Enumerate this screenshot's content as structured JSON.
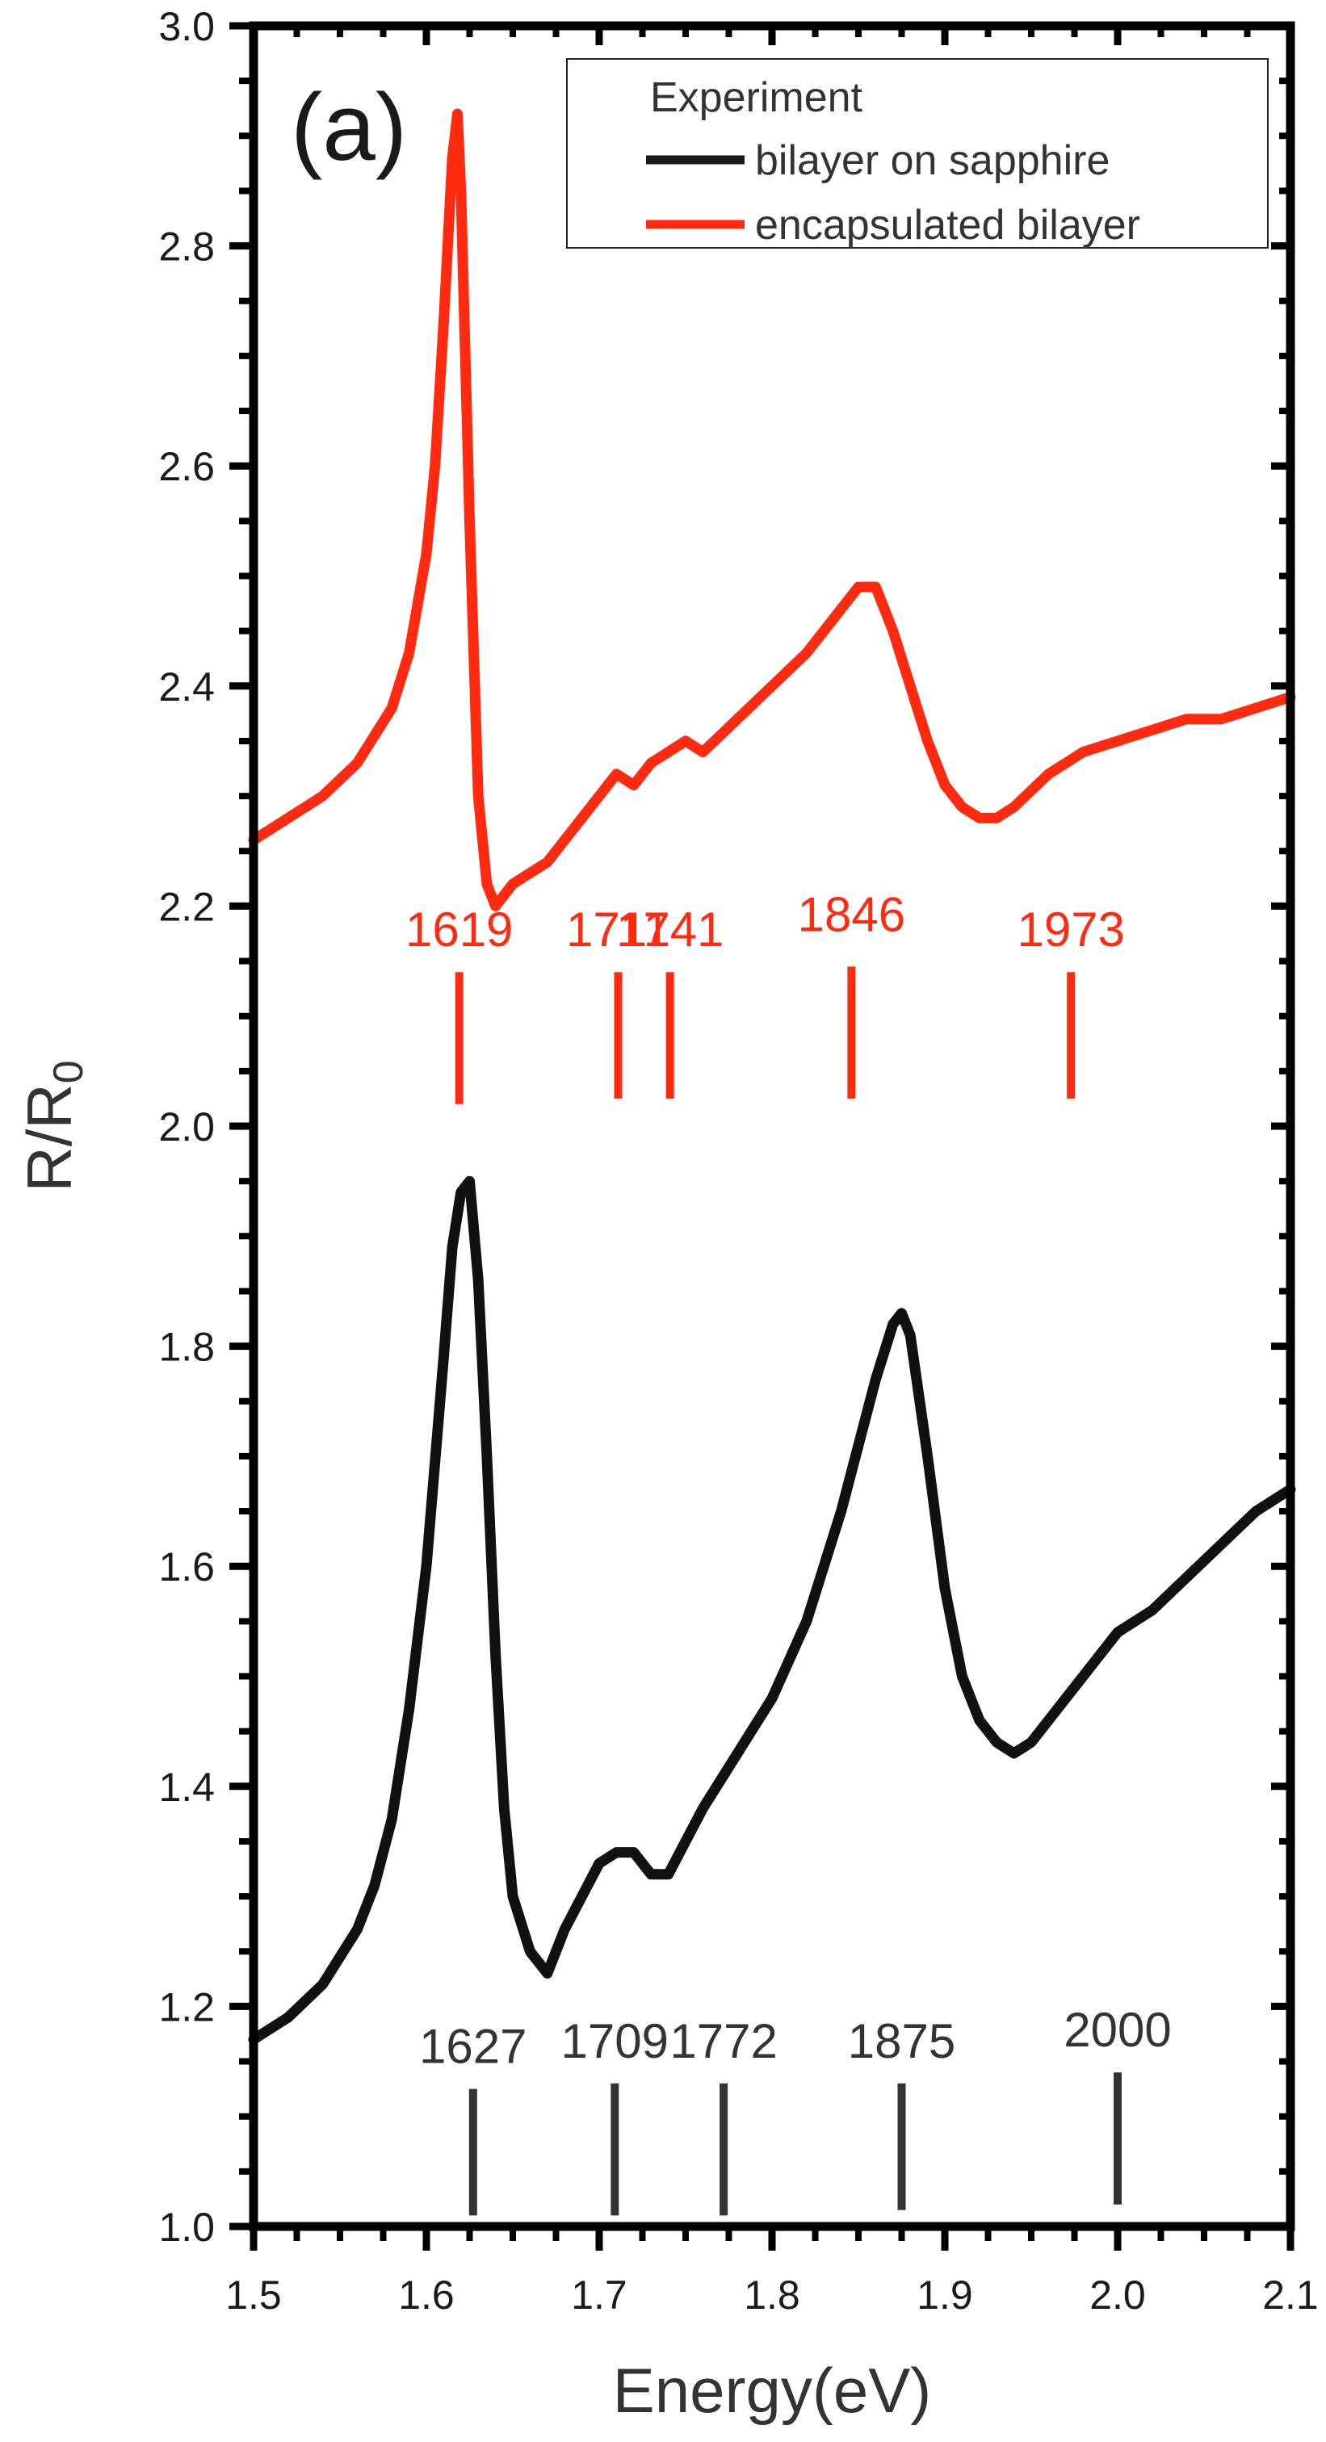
{
  "chart_data": {
    "type": "line",
    "panel_label": "(a)",
    "xlabel": "Energy(eV)",
    "ylabel_main": "R/R",
    "ylabel_sub": "0",
    "xlim": [
      1.5,
      2.1
    ],
    "ylim": [
      1.0,
      3.0
    ],
    "x_ticks": [
      "1.5",
      "1.6",
      "1.7",
      "1.8",
      "1.9",
      "2.0",
      "2.1"
    ],
    "y_ticks": [
      "1.0",
      "1.2",
      "1.4",
      "1.6",
      "1.8",
      "2.0",
      "2.2",
      "2.4",
      "2.6",
      "2.8",
      "3.0"
    ],
    "legend": {
      "title": "Experiment",
      "position": "top-right",
      "entries": [
        {
          "label": "bilayer on sapphire",
          "color": "#1a1a1a"
        },
        {
          "label": "encapsulated bilayer",
          "color": "#ff2a10"
        }
      ]
    },
    "series": [
      {
        "name": "bilayer on sapphire",
        "color": "#111111",
        "x": [
          1.5,
          1.52,
          1.54,
          1.56,
          1.57,
          1.58,
          1.59,
          1.6,
          1.61,
          1.615,
          1.62,
          1.625,
          1.63,
          1.635,
          1.64,
          1.645,
          1.65,
          1.66,
          1.67,
          1.68,
          1.69,
          1.7,
          1.71,
          1.72,
          1.73,
          1.74,
          1.75,
          1.76,
          1.78,
          1.8,
          1.82,
          1.84,
          1.85,
          1.86,
          1.87,
          1.875,
          1.88,
          1.89,
          1.9,
          1.91,
          1.92,
          1.93,
          1.94,
          1.95,
          1.96,
          1.98,
          2.0,
          2.02,
          2.04,
          2.06,
          2.08,
          2.1
        ],
        "y": [
          1.17,
          1.19,
          1.22,
          1.27,
          1.31,
          1.37,
          1.47,
          1.6,
          1.79,
          1.89,
          1.94,
          1.95,
          1.86,
          1.7,
          1.52,
          1.38,
          1.3,
          1.25,
          1.23,
          1.27,
          1.3,
          1.33,
          1.34,
          1.34,
          1.32,
          1.32,
          1.35,
          1.38,
          1.43,
          1.48,
          1.55,
          1.65,
          1.71,
          1.77,
          1.82,
          1.83,
          1.81,
          1.7,
          1.58,
          1.5,
          1.46,
          1.44,
          1.43,
          1.44,
          1.46,
          1.5,
          1.54,
          1.56,
          1.59,
          1.62,
          1.65,
          1.67
        ]
      },
      {
        "name": "encapsulated bilayer",
        "color": "#ff2a10",
        "x": [
          1.5,
          1.52,
          1.54,
          1.56,
          1.58,
          1.59,
          1.6,
          1.605,
          1.61,
          1.615,
          1.618,
          1.62,
          1.625,
          1.63,
          1.635,
          1.64,
          1.65,
          1.66,
          1.67,
          1.68,
          1.69,
          1.7,
          1.71,
          1.72,
          1.73,
          1.74,
          1.75,
          1.76,
          1.78,
          1.8,
          1.82,
          1.84,
          1.85,
          1.86,
          1.87,
          1.88,
          1.89,
          1.9,
          1.91,
          1.92,
          1.93,
          1.94,
          1.96,
          1.98,
          2.0,
          2.02,
          2.04,
          2.06,
          2.08,
          2.1
        ],
        "y": [
          2.26,
          2.28,
          2.3,
          2.33,
          2.38,
          2.43,
          2.52,
          2.6,
          2.73,
          2.88,
          2.92,
          2.85,
          2.55,
          2.3,
          2.22,
          2.2,
          2.22,
          2.23,
          2.24,
          2.26,
          2.28,
          2.3,
          2.32,
          2.31,
          2.33,
          2.34,
          2.35,
          2.34,
          2.37,
          2.4,
          2.43,
          2.47,
          2.49,
          2.49,
          2.45,
          2.4,
          2.35,
          2.31,
          2.29,
          2.28,
          2.28,
          2.29,
          2.32,
          2.34,
          2.35,
          2.36,
          2.37,
          2.37,
          2.38,
          2.39
        ]
      }
    ],
    "markers": [
      {
        "color": "#ff2a10",
        "items": [
          {
            "label": "1619",
            "x": 1.619,
            "y_from": 2.02,
            "y_to": 2.14
          },
          {
            "label": "1711",
            "x": 1.711,
            "y_from": 2.025,
            "y_to": 2.14
          },
          {
            "label": "1741",
            "x": 1.741,
            "y_from": 2.025,
            "y_to": 2.14
          },
          {
            "label": "1846",
            "x": 1.846,
            "y_from": 2.025,
            "y_to": 2.145
          },
          {
            "label": "1973",
            "x": 1.973,
            "y_from": 2.025,
            "y_to": 2.14
          }
        ]
      },
      {
        "color": "#333333",
        "items": [
          {
            "label": "1627",
            "x": 1.627,
            "y_from": 1.01,
            "y_to": 1.125
          },
          {
            "label": "1709",
            "x": 1.709,
            "y_from": 1.01,
            "y_to": 1.13
          },
          {
            "label": "1772",
            "x": 1.772,
            "y_from": 1.01,
            "y_to": 1.13
          },
          {
            "label": "1875",
            "x": 1.875,
            "y_from": 1.015,
            "y_to": 1.13
          },
          {
            "label": "2000",
            "x": 2.0,
            "y_from": 1.02,
            "y_to": 1.14
          }
        ]
      }
    ]
  }
}
